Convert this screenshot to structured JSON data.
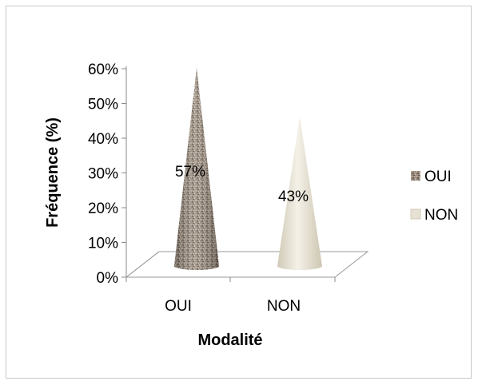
{
  "chart_data": {
    "type": "bar",
    "shape": "cone",
    "categories": [
      "OUI",
      "NON"
    ],
    "values": [
      57,
      43
    ],
    "data_labels": [
      "57%",
      "43%"
    ],
    "title": "",
    "xlabel": "Modalité",
    "ylabel": "Fréquence (%)",
    "ylim": [
      0,
      60
    ],
    "yticks": [
      "0%",
      "10%",
      "20%",
      "30%",
      "40%",
      "50%",
      "60%"
    ],
    "grid": false,
    "legend": {
      "position": "right",
      "entries": [
        {
          "label": "OUI",
          "color": "#8c7e70"
        },
        {
          "label": "NON",
          "color": "#e4dfcf"
        }
      ]
    },
    "colors": [
      "#8c7e70",
      "#e4dfcf"
    ]
  }
}
